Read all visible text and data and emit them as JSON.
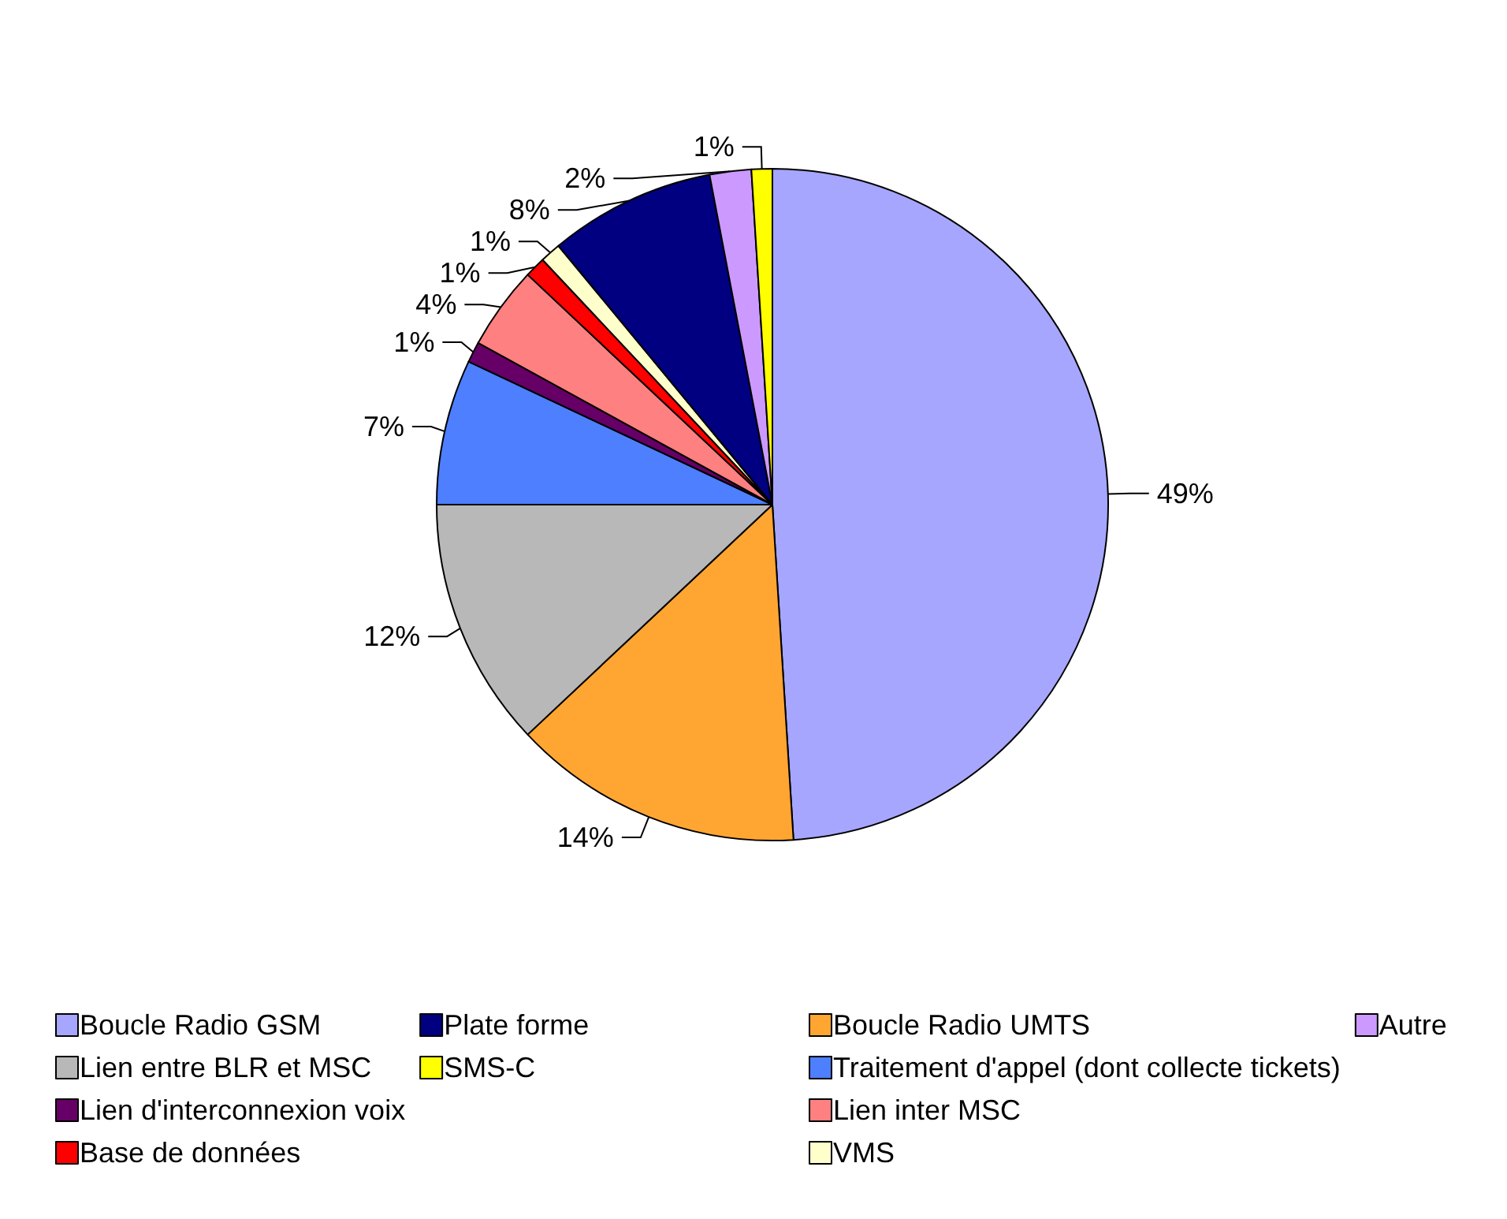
{
  "chart_data": {
    "type": "pie",
    "categories": [
      "Boucle Radio GSM",
      "Boucle Radio UMTS",
      "Lien entre BLR et MSC",
      "Traitement d'appel (dont collecte tickets)",
      "Lien d'interconnexion voix",
      "Lien inter MSC",
      "Base de données",
      "VMS",
      "Plate forme",
      "Autre",
      "SMS-C"
    ],
    "values": [
      49,
      14,
      12,
      7,
      1,
      4,
      1,
      1,
      8,
      2,
      1
    ],
    "value_labels": [
      "49%",
      "14%",
      "12%",
      "7%",
      "1%",
      "4%",
      "1%",
      "1%",
      "8%",
      "2%",
      "1%"
    ],
    "colors": [
      "#a6a6ff",
      "#ffa632",
      "#b8b8b8",
      "#4d7fff",
      "#660066",
      "#ff8080",
      "#ff0000",
      "#ffffcc",
      "#000080",
      "#cc99ff",
      "#ffff00"
    ],
    "legend": "bottom"
  }
}
